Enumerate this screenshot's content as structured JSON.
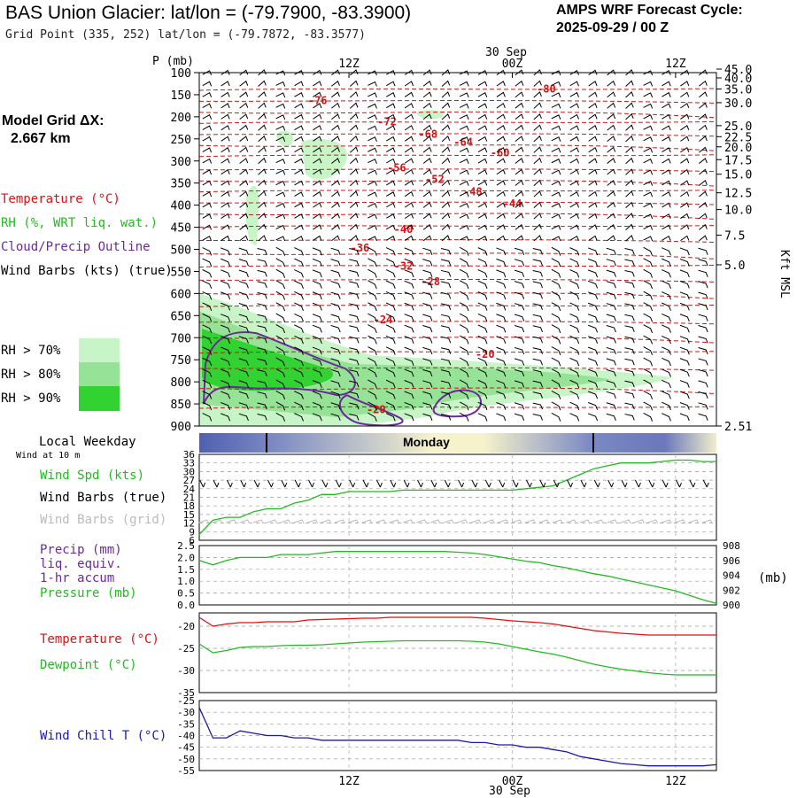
{
  "header": {
    "title": "BAS Union Glacier:  lat/lon = (-79.7900, -83.3900)",
    "grid_point": "Grid Point (335, 252) lat/lon = (-79.7872, -83.3577)",
    "cycle_label": "AMPS WRF Forecast Cycle:",
    "cycle_value": "2025-09-29 / 00  Z"
  },
  "left_panel": {
    "model_grid_label": "Model Grid ΔX:",
    "model_grid_value": "2.667 km",
    "legend_temperature": "Temperature (°C)",
    "legend_rh": "RH (%, WRT liq. wat.)",
    "legend_cloud": "Cloud/Precip Outline",
    "legend_wind": "Wind Barbs (kts) (true)",
    "rh_scale": [
      {
        "label": "RH > 70%",
        "color": "#c8f5c8"
      },
      {
        "label": "RH > 80%",
        "color": "#96e296"
      },
      {
        "label": "RH > 90%",
        "color": "#32d232"
      }
    ],
    "local_weekday": "Local Weekday",
    "wind_at_10m": "Wind at 10 m"
  },
  "colors": {
    "temperature": "#dd1111",
    "rh_green": "#22bb22",
    "cloud_outline": "#6a2a9a",
    "wind_chill": "#1a1aaa",
    "weekday_dark": "#5060b0",
    "weekday_light": "#f5f2cc"
  },
  "time_axis": {
    "top_date": "30 Sep",
    "bottom_date": "30 Sep",
    "ticks": [
      {
        "label": "12Z",
        "hour": 12
      },
      {
        "label": "00Z",
        "hour": 24
      },
      {
        "label": "12Z",
        "hour": 36
      }
    ],
    "hour_range": [
      1,
      39
    ],
    "weekday_label": "Monday"
  },
  "chart_data": [
    {
      "type": "line",
      "title": "Vertical cross-section: Temperature, RH, wind",
      "ylabel": "P (mb)",
      "y2label": "Kft MSL",
      "pressure_ticks": [
        100,
        150,
        200,
        250,
        300,
        350,
        400,
        450,
        500,
        550,
        600,
        650,
        700,
        750,
        800,
        850,
        900
      ],
      "height_ticks": [
        "45.0",
        "40.0",
        "35.0",
        "30.0",
        "25.0",
        "22.5",
        "20.0",
        "17.5",
        "15.0",
        "12.5",
        "10.0",
        "7.5",
        "5.0",
        "2.51"
      ],
      "height_tick_pressures": [
        92,
        112,
        137,
        168,
        220,
        245,
        268,
        297,
        330,
        372,
        410,
        468,
        535,
        900
      ],
      "isotherm_labels": [
        {
          "value": "-80",
          "hour": 26.5,
          "p": 137
        },
        {
          "value": "-76",
          "hour": 9.7,
          "p": 163
        },
        {
          "value": "-72",
          "hour": 14.8,
          "p": 211
        },
        {
          "value": "-68",
          "hour": 17.8,
          "p": 239
        },
        {
          "value": "-64",
          "hour": 20.4,
          "p": 257
        },
        {
          "value": "-60",
          "hour": 23.1,
          "p": 281
        },
        {
          "value": "-56",
          "hour": 15.5,
          "p": 316
        },
        {
          "value": "-52",
          "hour": 18.3,
          "p": 342
        },
        {
          "value": "-48",
          "hour": 21.1,
          "p": 370
        },
        {
          "value": "-44",
          "hour": 24.0,
          "p": 397
        },
        {
          "value": "-40",
          "hour": 16.0,
          "p": 455
        },
        {
          "value": "-36",
          "hour": 12.8,
          "p": 497
        },
        {
          "value": "-32",
          "hour": 16.0,
          "p": 538
        },
        {
          "value": "-28",
          "hour": 18.0,
          "p": 573
        },
        {
          "value": "-24",
          "hour": 14.5,
          "p": 659
        },
        {
          "value": "-20",
          "hour": 22.0,
          "p": 738
        },
        {
          "value": "-20",
          "hour": 14.0,
          "p": 863
        }
      ]
    },
    {
      "type": "line",
      "title": "Wind Spd (kts)",
      "yticks": [
        6,
        9,
        12,
        15,
        18,
        21,
        24,
        27,
        30,
        33,
        36
      ],
      "ylim": [
        6,
        36
      ],
      "x": [
        1,
        2,
        3,
        4,
        5,
        6,
        7,
        8,
        9,
        10,
        11,
        12,
        13,
        14,
        15,
        16,
        17,
        18,
        19,
        20,
        21,
        22,
        23,
        24,
        25,
        26,
        27,
        28,
        29,
        30,
        31,
        32,
        33,
        34,
        35,
        36,
        37,
        38,
        39
      ],
      "values": [
        8,
        13,
        14,
        14,
        16,
        17,
        17,
        19,
        20,
        22,
        22,
        23,
        23,
        23,
        23,
        23.5,
        23.5,
        23.5,
        23.5,
        23.5,
        23.5,
        23.5,
        23.5,
        23.5,
        24,
        24.5,
        25,
        27,
        29,
        31,
        32,
        33,
        33,
        33,
        33.5,
        34,
        34,
        33.5,
        33.5
      ]
    },
    {
      "type": "line",
      "title": "Pressure (mb)",
      "yticks_left": [
        "0.0",
        "0.5",
        "1.0",
        "1.5",
        "2.0",
        "2.5"
      ],
      "ylim_left": [
        0,
        2.5
      ],
      "yticks_right": [
        "900",
        "902",
        "904",
        "906",
        "908"
      ],
      "ylim_right": [
        900,
        908
      ],
      "precip_label": "Precip (mm)",
      "precip_sub1": "liq. equiv.",
      "precip_sub2": "1-hr accum",
      "pressure_label": "Pressure (mb)",
      "x": [
        1,
        2,
        3,
        4,
        5,
        6,
        7,
        8,
        9,
        10,
        11,
        12,
        13,
        14,
        15,
        16,
        17,
        18,
        19,
        20,
        21,
        22,
        23,
        24,
        25,
        26,
        27,
        28,
        29,
        30,
        31,
        32,
        33,
        34,
        35,
        36,
        37,
        38,
        39
      ],
      "values": [
        906.0,
        905.4,
        906.0,
        906.4,
        906.4,
        906.4,
        906.8,
        906.8,
        906.8,
        907.0,
        907.2,
        907.2,
        907.2,
        907.2,
        907.2,
        907.2,
        907.2,
        907.2,
        907.2,
        907.1,
        907.0,
        906.8,
        906.5,
        906.2,
        905.9,
        905.7,
        905.3,
        905.0,
        904.6,
        904.2,
        903.9,
        903.5,
        903.1,
        902.7,
        902.3,
        901.9,
        901.3,
        900.7,
        900.2
      ]
    },
    {
      "type": "line",
      "yticks": [
        "-20",
        "-25",
        "-30",
        "-35"
      ],
      "ylim": [
        -35,
        -17
      ],
      "series": [
        {
          "name": "Temperature (°C)",
          "color": "#dd1111",
          "values": [
            -18.0,
            -20.0,
            -19.5,
            -19.2,
            -19.2,
            -19.0,
            -19.0,
            -19.0,
            -18.6,
            -18.5,
            -18.4,
            -18.3,
            -18.2,
            -18.2,
            -18.0,
            -18.0,
            -18.0,
            -18.0,
            -18.0,
            -18.0,
            -18.0,
            -18.2,
            -18.5,
            -18.8,
            -19.0,
            -19.2,
            -19.5,
            -20.0,
            -20.5,
            -21.0,
            -21.3,
            -21.6,
            -21.8,
            -22.0,
            -22.0,
            -22.0,
            -22.0,
            -22.0,
            -22.0
          ]
        },
        {
          "name": "Dewpoint (°C)",
          "color": "#22bb22",
          "values": [
            -24.0,
            -26.0,
            -25.5,
            -24.8,
            -24.6,
            -24.6,
            -24.4,
            -24.3,
            -24.3,
            -24.2,
            -24.0,
            -23.8,
            -23.6,
            -23.5,
            -23.4,
            -23.3,
            -23.3,
            -23.3,
            -23.3,
            -23.3,
            -23.4,
            -23.6,
            -24.0,
            -24.6,
            -25.2,
            -25.8,
            -26.3,
            -27.0,
            -27.8,
            -28.6,
            -29.2,
            -29.7,
            -30.1,
            -30.5,
            -30.8,
            -31.0,
            -31.0,
            -31.0,
            -31.0
          ]
        }
      ]
    },
    {
      "type": "line",
      "title": "Wind Chill T (°C)",
      "yticks": [
        "-25",
        "-30",
        "-35",
        "-40",
        "-45",
        "-50",
        "-55"
      ],
      "ylim": [
        -55,
        -25
      ],
      "x": [
        1,
        2,
        3,
        4,
        5,
        6,
        7,
        8,
        9,
        10,
        11,
        12,
        13,
        14,
        15,
        16,
        17,
        18,
        19,
        20,
        21,
        22,
        23,
        24,
        25,
        26,
        27,
        28,
        29,
        30,
        31,
        32,
        33,
        34,
        35,
        36,
        37,
        38,
        39
      ],
      "values": [
        -28,
        -41,
        -41,
        -38,
        -39,
        -40,
        -40,
        -41,
        -41,
        -42,
        -42,
        -42,
        -42,
        -42,
        -42,
        -42,
        -42,
        -42,
        -42,
        -42,
        -43,
        -43,
        -44,
        -44,
        -45,
        -45,
        -46,
        -47,
        -49,
        -50,
        -51,
        -52,
        -52.5,
        -53,
        -53,
        -53,
        -53,
        -53,
        -52.5
      ]
    }
  ],
  "wind_labels": {
    "spd": "Wind Spd (kts)",
    "barbs_true": "Wind Barbs (true)",
    "barbs_grid": "Wind Barbs (grid)",
    "temperature": "Temperature (°C)",
    "dewpoint": "Dewpoint (°C)",
    "wind_chill": "Wind Chill T (°C)",
    "mb_unit": "(mb)"
  }
}
